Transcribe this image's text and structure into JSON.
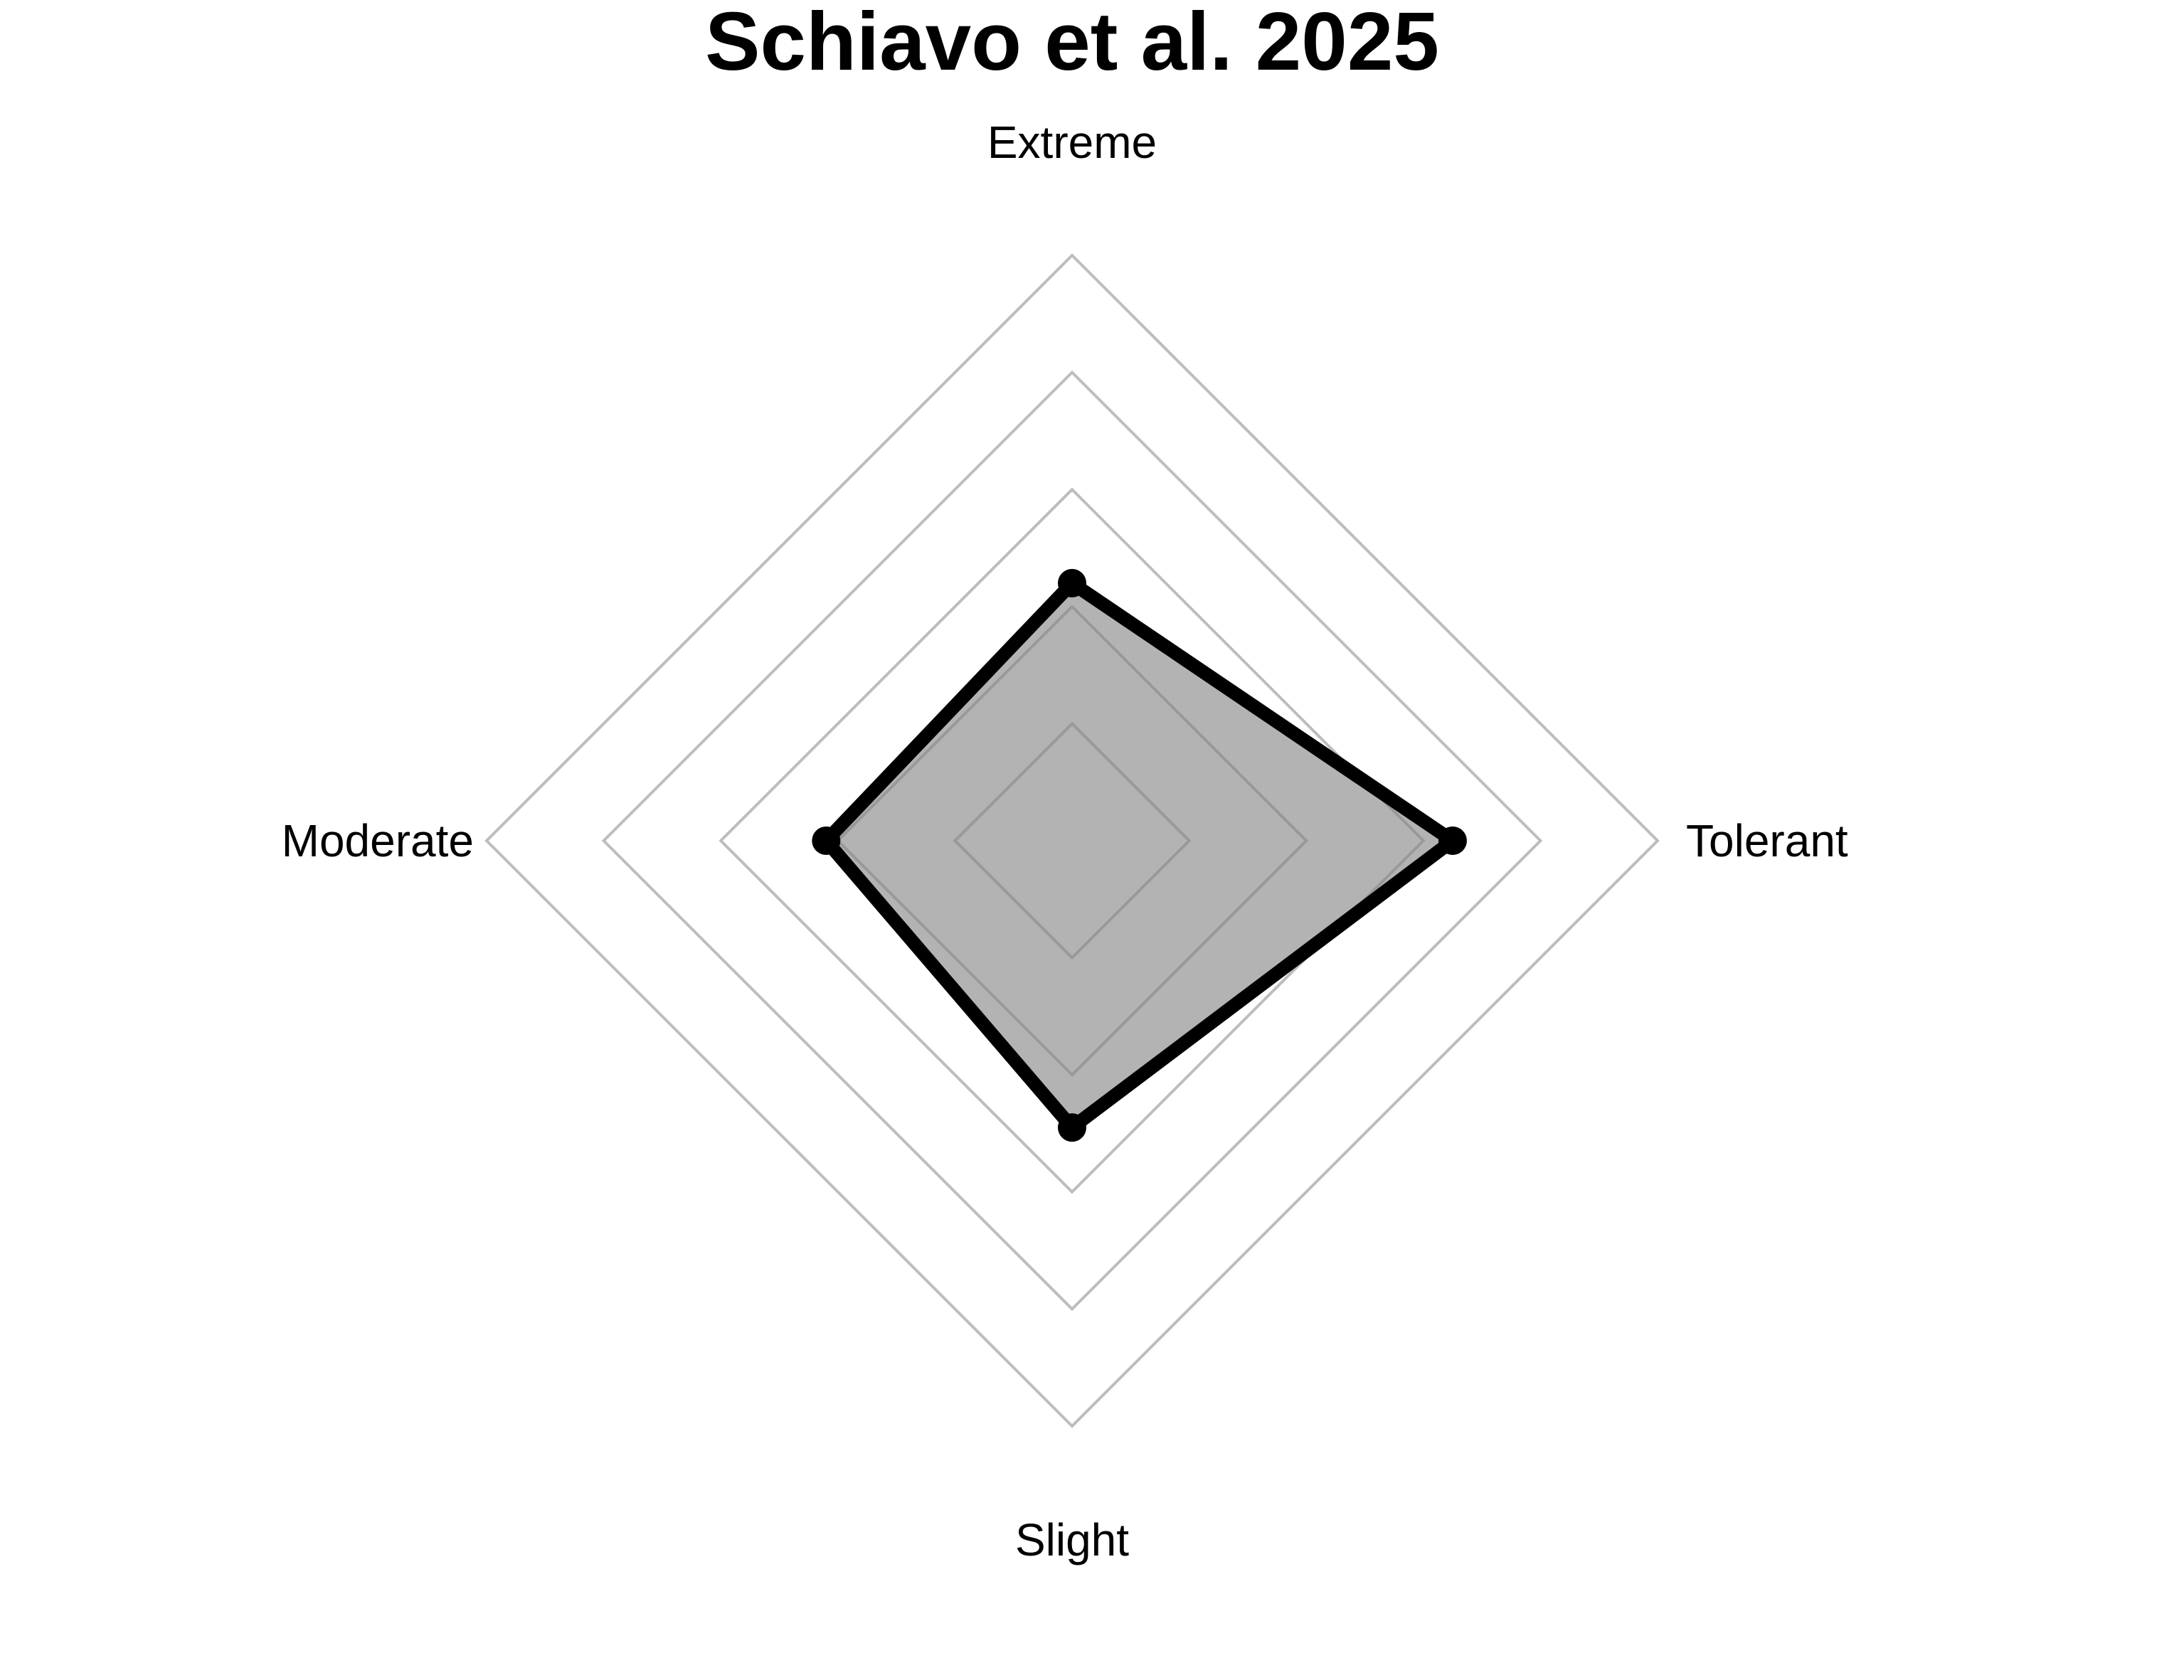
{
  "chart_data": {
    "type": "radar",
    "title": "Schiavo et al. 2025",
    "axes": [
      "Extreme",
      "Tolerant",
      "Slight",
      "Moderate"
    ],
    "series": [
      {
        "values": [
          0.44,
          0.65,
          0.49,
          0.42
        ]
      }
    ],
    "rlim": [
      0,
      1
    ],
    "grid_levels": [
      0.2,
      0.4,
      0.6,
      0.8,
      1.0
    ],
    "grid": true,
    "colors": {
      "grid": "#bdbdbd",
      "fill": "#808080",
      "line": "#000000",
      "point": "#000000"
    }
  }
}
